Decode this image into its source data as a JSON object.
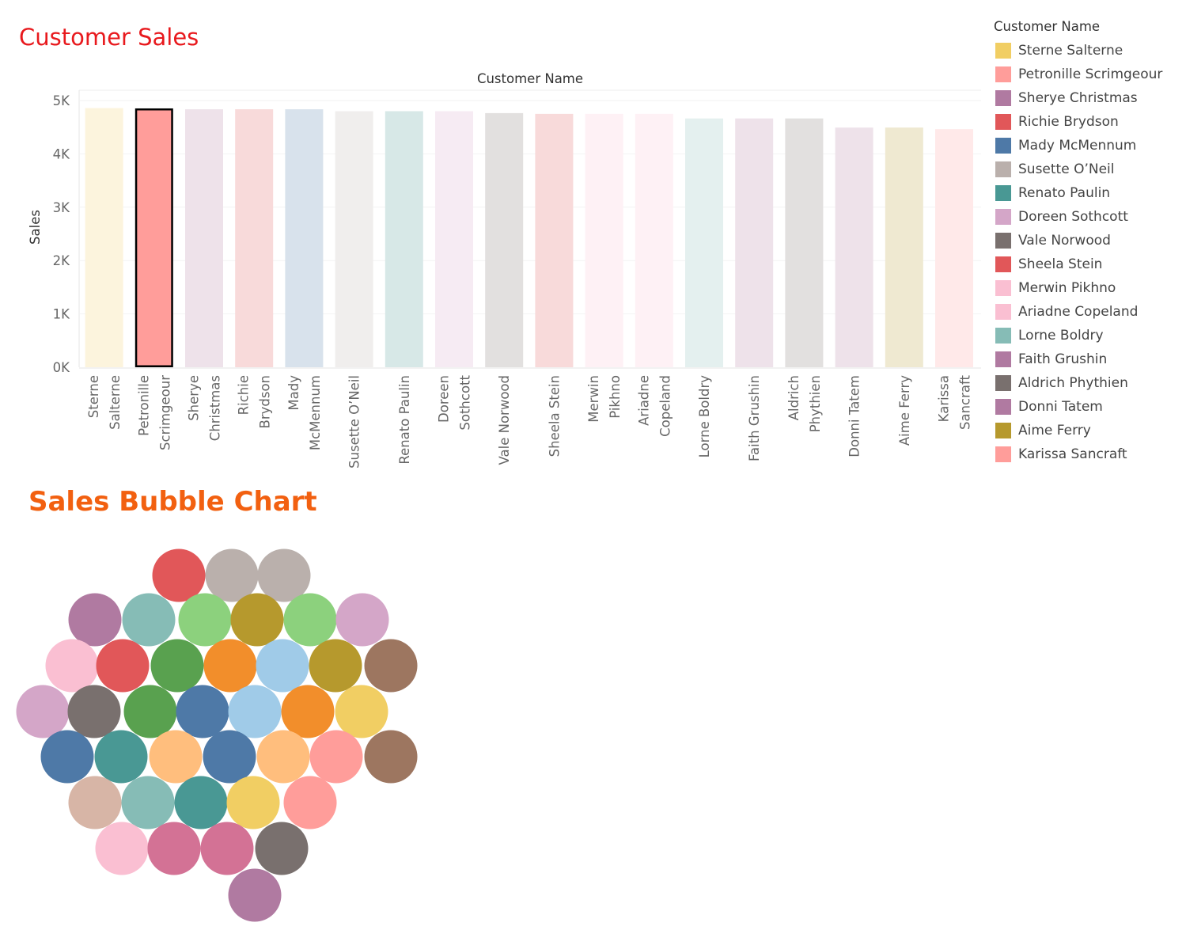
{
  "page": {
    "title": "Customer Sales",
    "bubble_title": "Sales Bubble Chart"
  },
  "legend": {
    "title": "Customer Name",
    "items": [
      {
        "name": "Sterne Salterne",
        "color": "#f1ce63"
      },
      {
        "name": "Petronille Scrimgeour",
        "color": "#ff9d9a"
      },
      {
        "name": "Sherye Christmas",
        "color": "#b07aa1"
      },
      {
        "name": "Richie Brydson",
        "color": "#e15759"
      },
      {
        "name": "Mady McMennum",
        "color": "#4e79a7"
      },
      {
        "name": "Susette O’Neil",
        "color": "#bab0ac"
      },
      {
        "name": "Renato Paulin",
        "color": "#499894"
      },
      {
        "name": "Doreen Sothcott",
        "color": "#d4a6c8"
      },
      {
        "name": "Vale Norwood",
        "color": "#79706e"
      },
      {
        "name": "Sheela Stein",
        "color": "#e15759"
      },
      {
        "name": "Merwin Pikhno",
        "color": "#fabfd2"
      },
      {
        "name": "Ariadne Copeland",
        "color": "#fabfd2"
      },
      {
        "name": "Lorne Boldry",
        "color": "#86bcb6"
      },
      {
        "name": "Faith Grushin",
        "color": "#b07aa1"
      },
      {
        "name": "Aldrich Phythien",
        "color": "#79706e"
      },
      {
        "name": "Donni Tatem",
        "color": "#b07aa1"
      },
      {
        "name": "Aime Ferry",
        "color": "#b6992d"
      },
      {
        "name": "Karissa Sancraft",
        "color": "#ff9d9a"
      }
    ]
  },
  "chart_data": [
    {
      "type": "bar",
      "title": "Customer Sales",
      "xlabel": "Customer Name",
      "ylabel": "Sales",
      "ylim": [
        0,
        5000
      ],
      "yticks": [
        {
          "value": 0,
          "label": "0K"
        },
        {
          "value": 1000,
          "label": "1K"
        },
        {
          "value": 2000,
          "label": "2K"
        },
        {
          "value": 3000,
          "label": "3K"
        },
        {
          "value": 4000,
          "label": "4K"
        },
        {
          "value": 5000,
          "label": "5K"
        }
      ],
      "highlighted": "Petronille Scrimgeour",
      "categories": [
        {
          "name": "Sterne Salterne",
          "label_lines": [
            "Sterne",
            "Salterne"
          ],
          "value": 4858,
          "color": "#f1ce63"
        },
        {
          "name": "Petronille Scrimgeour",
          "label_lines": [
            "Petronille",
            "Scrimgeour"
          ],
          "value": 4852,
          "color": "#ff9d9a"
        },
        {
          "name": "Sherye Christmas",
          "label_lines": [
            "Sherye",
            "Christmas"
          ],
          "value": 4836,
          "color": "#b07aa1"
        },
        {
          "name": "Richie Brydson",
          "label_lines": [
            "Richie",
            "Brydson"
          ],
          "value": 4836,
          "color": "#e15759"
        },
        {
          "name": "Mady McMennum",
          "label_lines": [
            "Mady",
            "McMennum"
          ],
          "value": 4836,
          "color": "#4e79a7"
        },
        {
          "name": "Susette O’Neil",
          "label_lines": [
            "Susette O’Neil"
          ],
          "value": 4800,
          "color": "#bab0ac"
        },
        {
          "name": "Renato Paulin",
          "label_lines": [
            "Renato Paulin"
          ],
          "value": 4800,
          "color": "#499894"
        },
        {
          "name": "Doreen Sothcott",
          "label_lines": [
            "Doreen",
            "Sothcott"
          ],
          "value": 4800,
          "color": "#d4a6c8"
        },
        {
          "name": "Vale Norwood",
          "label_lines": [
            "Vale Norwood"
          ],
          "value": 4764,
          "color": "#79706e"
        },
        {
          "name": "Sheela Stein",
          "label_lines": [
            "Sheela Stein"
          ],
          "value": 4750,
          "color": "#e15759"
        },
        {
          "name": "Merwin Pikhno",
          "label_lines": [
            "Merwin",
            "Pikhno"
          ],
          "value": 4750,
          "color": "#fabfd2"
        },
        {
          "name": "Ariadne Copeland",
          "label_lines": [
            "Ariadne",
            "Copeland"
          ],
          "value": 4750,
          "color": "#fabfd2"
        },
        {
          "name": "Lorne Boldry",
          "label_lines": [
            "Lorne Boldry"
          ],
          "value": 4664,
          "color": "#86bcb6"
        },
        {
          "name": "Faith Grushin",
          "label_lines": [
            "Faith Grushin"
          ],
          "value": 4664,
          "color": "#b07aa1"
        },
        {
          "name": "Aldrich Phythien",
          "label_lines": [
            "Aldrich",
            "Phythien"
          ],
          "value": 4664,
          "color": "#79706e"
        },
        {
          "name": "Donni Tatem",
          "label_lines": [
            "Donni Tatem"
          ],
          "value": 4493,
          "color": "#b07aa1"
        },
        {
          "name": "Aime Ferry",
          "label_lines": [
            "Aime Ferry"
          ],
          "value": 4493,
          "color": "#b6992d"
        },
        {
          "name": "Karissa Sancraft",
          "label_lines": [
            "Karissa",
            "Sancraft"
          ],
          "value": 4464,
          "color": "#ff9d9a"
        }
      ]
    },
    {
      "type": "bubble",
      "title": "Sales Bubble Chart",
      "bubbles": [
        {
          "color": "#e15759"
        },
        {
          "color": "#bab0ac"
        },
        {
          "color": "#bab0ac"
        },
        {
          "color": "#b07aa1"
        },
        {
          "color": "#86bcb6"
        },
        {
          "color": "#8cd17d"
        },
        {
          "color": "#b6992d"
        },
        {
          "color": "#8cd17d"
        },
        {
          "color": "#d4a6c8"
        },
        {
          "color": "#fabfd2"
        },
        {
          "color": "#e15759"
        },
        {
          "color": "#59a14f"
        },
        {
          "color": "#f28e2b"
        },
        {
          "color": "#a0cbe8"
        },
        {
          "color": "#b6992d"
        },
        {
          "color": "#9d7660"
        },
        {
          "color": "#d4a6c8"
        },
        {
          "color": "#79706e"
        },
        {
          "color": "#59a14f"
        },
        {
          "color": "#4e79a7"
        },
        {
          "color": "#a0cbe8"
        },
        {
          "color": "#f28e2b"
        },
        {
          "color": "#f1ce63"
        },
        {
          "color": "#4e79a7"
        },
        {
          "color": "#499894"
        },
        {
          "color": "#ffbe7d"
        },
        {
          "color": "#4e79a7"
        },
        {
          "color": "#ffbe7d"
        },
        {
          "color": "#ff9d9a"
        },
        {
          "color": "#9d7660"
        },
        {
          "color": "#d7b5a6"
        },
        {
          "color": "#86bcb6"
        },
        {
          "color": "#499894"
        },
        {
          "color": "#f1ce63"
        },
        {
          "color": "#ff9d9a"
        },
        {
          "color": "#fabfd2"
        },
        {
          "color": "#d37295"
        },
        {
          "color": "#d37295"
        },
        {
          "color": "#79706e"
        },
        {
          "color": "#b07aa1"
        }
      ]
    }
  ]
}
